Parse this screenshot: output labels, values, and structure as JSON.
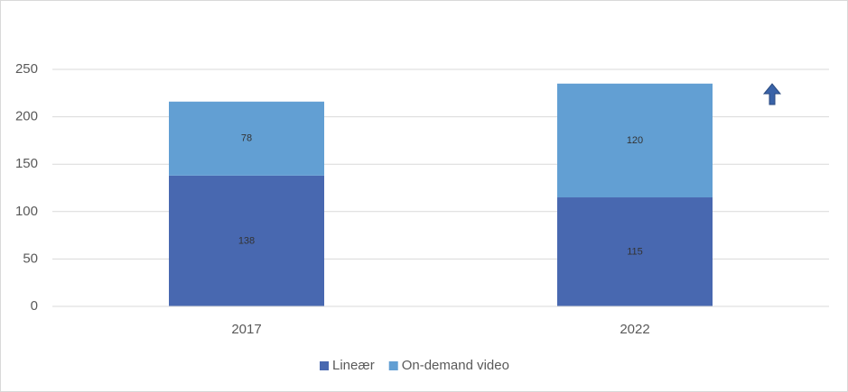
{
  "chart_data": {
    "type": "stacked-bar",
    "categories": [
      "2017",
      "2022"
    ],
    "series": [
      {
        "name": "Lineær",
        "color": "#4868b0",
        "values": [
          138,
          115
        ]
      },
      {
        "name": "On-demand video",
        "color": "#629fd3",
        "values": [
          78,
          120
        ]
      }
    ],
    "ylim": [
      0,
      250
    ],
    "yticks": [
      0,
      50,
      100,
      150,
      200,
      250
    ],
    "grid": true,
    "legend": "bottom"
  }
}
